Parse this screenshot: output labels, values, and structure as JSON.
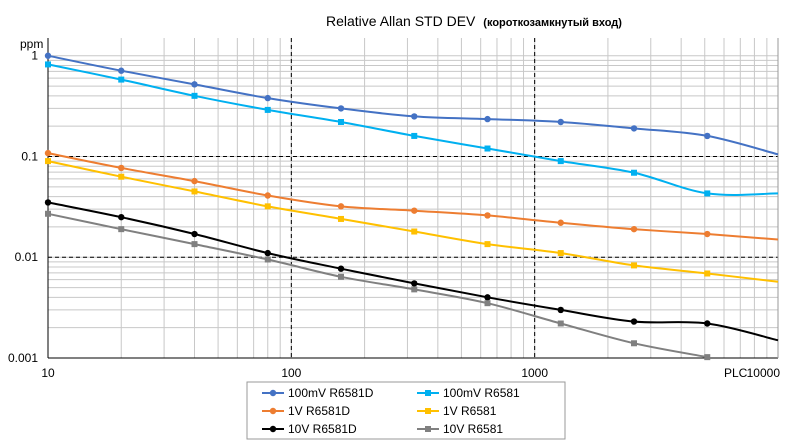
{
  "chart_data": {
    "type": "line",
    "title": "Relative Allan STD DEV",
    "subtitle": "(короткозамкнутый вход)",
    "ylabel": "ppm",
    "xlabel": "PLC",
    "xscale": "log",
    "yscale": "log",
    "xlim": [
      10,
      10000
    ],
    "ylim": [
      0.001,
      1.5
    ],
    "x_ticks": [
      "10",
      "100",
      "1000",
      "10000"
    ],
    "y_ticks": [
      "1",
      "0.1",
      "0.01",
      "0.001"
    ],
    "grid": true,
    "legend_position": "bottom",
    "series": [
      {
        "name": "100mV R6581D",
        "color": "#4472C4",
        "marker": "circle",
        "x": [
          10,
          20,
          40,
          80,
          160,
          320,
          640,
          1280,
          2560,
          5120
        ],
        "y": [
          1.0,
          0.71,
          0.52,
          0.38,
          0.3,
          0.25,
          0.235,
          0.22,
          0.19,
          0.16
        ],
        "end": [
          10000,
          0.105
        ]
      },
      {
        "name": "100mV R6581",
        "color": "#00B0F0",
        "marker": "square",
        "x": [
          10,
          20,
          40,
          80,
          160,
          320,
          640,
          1280,
          2560,
          5120
        ],
        "y": [
          0.82,
          0.58,
          0.4,
          0.29,
          0.22,
          0.16,
          0.12,
          0.09,
          0.069,
          0.043
        ],
        "end": [
          10000,
          0.043
        ]
      },
      {
        "name": "1V R6581D",
        "color": "#ED7D31",
        "marker": "circle",
        "x": [
          10,
          20,
          40,
          80,
          160,
          320,
          640,
          1280,
          2560,
          5120
        ],
        "y": [
          0.108,
          0.077,
          0.057,
          0.041,
          0.032,
          0.029,
          0.026,
          0.022,
          0.019,
          0.017
        ],
        "end": [
          10000,
          0.015
        ]
      },
      {
        "name": "1V R6581",
        "color": "#FFC000",
        "marker": "square",
        "x": [
          10,
          20,
          40,
          80,
          160,
          320,
          640,
          1280,
          2560,
          5120
        ],
        "y": [
          0.09,
          0.063,
          0.045,
          0.032,
          0.024,
          0.018,
          0.0135,
          0.011,
          0.0083,
          0.0069
        ],
        "end": [
          10000,
          0.0057
        ]
      },
      {
        "name": "10V R6581D",
        "color": "#000000",
        "marker": "circle",
        "x": [
          10,
          20,
          40,
          80,
          160,
          320,
          640,
          1280,
          2560,
          5120
        ],
        "y": [
          0.035,
          0.025,
          0.017,
          0.011,
          0.0077,
          0.0055,
          0.004,
          0.003,
          0.0023,
          0.0022
        ],
        "end": [
          10000,
          0.0015
        ]
      },
      {
        "name": "10V R6581",
        "color": "#808080",
        "marker": "square",
        "x": [
          10,
          20,
          40,
          80,
          160,
          320,
          640,
          1280,
          2560,
          5120
        ],
        "y": [
          0.027,
          0.019,
          0.0135,
          0.0095,
          0.0064,
          0.0048,
          0.0035,
          0.0022,
          0.0014,
          0.00102
        ],
        "end": null
      }
    ]
  }
}
